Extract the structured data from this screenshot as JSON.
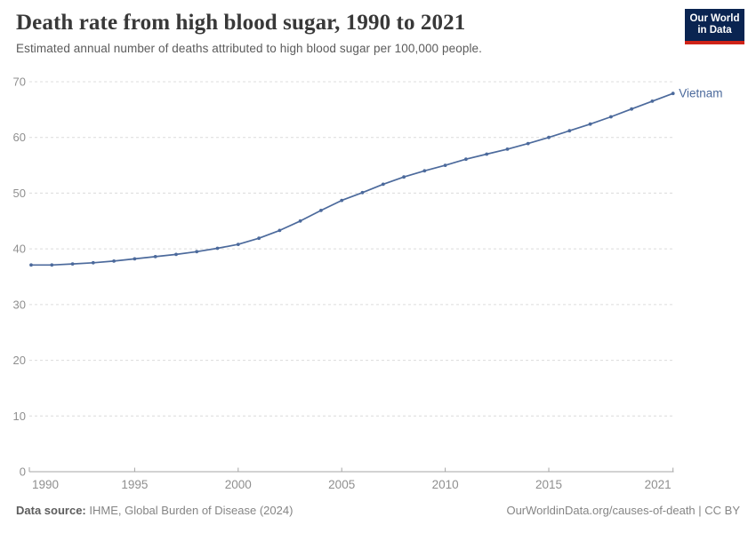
{
  "header": {
    "title": "Death rate from high blood sugar, 1990 to 2021",
    "subtitle": "Estimated annual number of deaths attributed to high blood sugar per 100,000 people.",
    "logo": {
      "line1": "Our World",
      "line2": "in Data",
      "bg_color": "#0a2451",
      "accent_color": "#cf2318"
    }
  },
  "chart_data": {
    "type": "line",
    "title": "Death rate from high blood sugar, 1990 to 2021",
    "subtitle": "Estimated annual number of deaths attributed to high blood sugar per 100,000 people.",
    "xlabel": "",
    "ylabel": "",
    "x": [
      1990,
      1991,
      1992,
      1993,
      1994,
      1995,
      1996,
      1997,
      1998,
      1999,
      2000,
      2001,
      2002,
      2003,
      2004,
      2005,
      2006,
      2007,
      2008,
      2009,
      2010,
      2011,
      2012,
      2013,
      2014,
      2015,
      2016,
      2017,
      2018,
      2019,
      2020,
      2021
    ],
    "series": [
      {
        "name": "Vietnam",
        "color": "#4C6A9C",
        "values": [
          37.1,
          37.1,
          37.3,
          37.5,
          37.8,
          38.2,
          38.6,
          39.0,
          39.5,
          40.1,
          40.8,
          41.9,
          43.3,
          45.0,
          46.9,
          48.7,
          50.1,
          51.6,
          52.9,
          54.0,
          55.0,
          56.1,
          57.0,
          57.9,
          58.9,
          60.0,
          61.2,
          62.4,
          63.7,
          65.1,
          66.5,
          67.9
        ]
      }
    ],
    "ylim": [
      0,
      70
    ],
    "yticks": [
      0,
      10,
      20,
      30,
      40,
      50,
      60,
      70
    ],
    "xticks": [
      1990,
      1995,
      2000,
      2005,
      2010,
      2015,
      2021
    ],
    "grid": "horizontal-dashed",
    "grid_color": "#dcdcdc",
    "axis_color": "#a5a5a5",
    "tick_label_color": "#8f8f8f",
    "legend_position": "end-of-line-label",
    "markers": true
  },
  "footer": {
    "source_label": "Data source:",
    "source_value": "IHME, Global Burden of Disease (2024)",
    "credit": "OurWorldinData.org/causes-of-death | CC BY"
  }
}
